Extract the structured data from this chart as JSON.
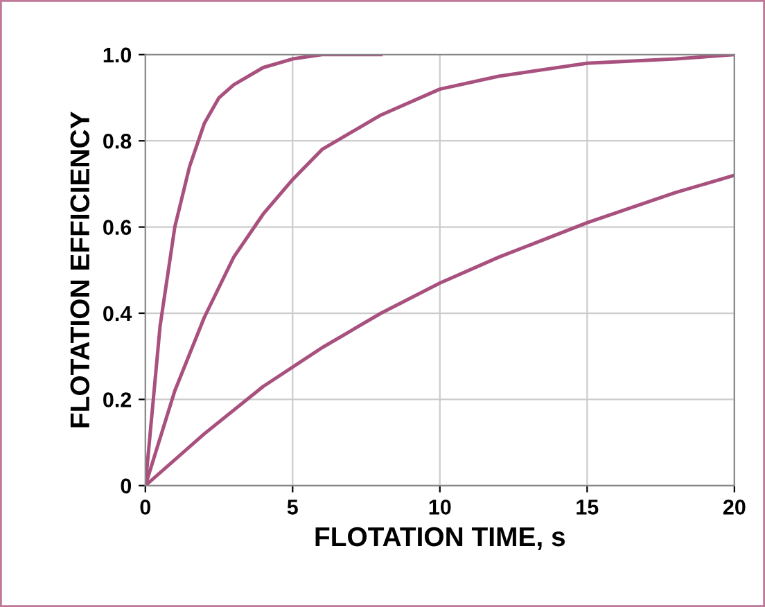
{
  "chart_data": {
    "type": "line",
    "xlabel": "FLOTATION TIME, s",
    "ylabel": "FLOTATION EFFICIENCY",
    "series": [
      {
        "color": "#a8507e",
        "x": [
          0,
          0.5,
          1,
          1.5,
          2,
          2.5,
          3,
          4,
          5,
          6,
          8
        ],
        "values": [
          0,
          0.37,
          0.6,
          0.74,
          0.84,
          0.9,
          0.93,
          0.97,
          0.99,
          1.0,
          1.0
        ]
      },
      {
        "color": "#a8507e",
        "x": [
          0,
          1,
          2,
          3,
          4,
          5,
          6,
          8,
          10,
          12,
          15,
          18,
          20
        ],
        "values": [
          0,
          0.22,
          0.39,
          0.53,
          0.63,
          0.71,
          0.78,
          0.86,
          0.92,
          0.95,
          0.98,
          0.99,
          1.0
        ]
      },
      {
        "color": "#a8507e",
        "x": [
          0,
          2,
          4,
          6,
          8,
          10,
          12,
          15,
          18,
          20
        ],
        "values": [
          0,
          0.12,
          0.23,
          0.32,
          0.4,
          0.47,
          0.53,
          0.61,
          0.68,
          0.72
        ]
      }
    ],
    "xlim": [
      0,
      20
    ],
    "ylim": [
      0,
      1.0
    ],
    "xticks": [
      0,
      5,
      10,
      15,
      20
    ],
    "yticks": [
      0,
      0.2,
      0.4,
      0.6,
      0.8,
      {
        "value": 1.0,
        "label": "1.0"
      }
    ],
    "grid": true,
    "line_style": "solid",
    "marker": "none"
  }
}
